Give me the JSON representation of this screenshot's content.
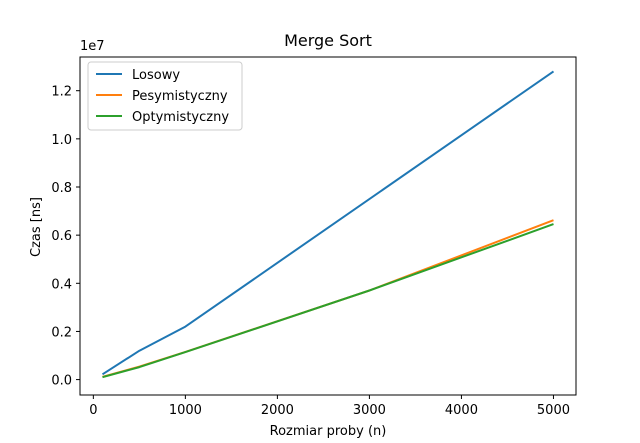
{
  "chart_data": {
    "type": "line",
    "title": "Merge Sort",
    "xlabel": "Rozmiar proby (n)",
    "ylabel": "Czas [ns]",
    "y_offset_label": "1e7",
    "xlim": [
      -145,
      5245
    ],
    "ylim": [
      -640000,
      13400000
    ],
    "x_ticks": [
      0,
      1000,
      2000,
      3000,
      4000,
      5000
    ],
    "x_tick_labels": [
      "0",
      "1000",
      "2000",
      "3000",
      "4000",
      "5000"
    ],
    "y_ticks": [
      0,
      2000000,
      4000000,
      6000000,
      8000000,
      10000000,
      12000000
    ],
    "y_tick_labels": [
      "0.0",
      "0.2",
      "0.4",
      "0.6",
      "0.8",
      "1.0",
      "1.2"
    ],
    "grid": false,
    "legend_position": "top-left",
    "x": [
      100,
      500,
      1000,
      5000
    ],
    "series": [
      {
        "name": "Losowy",
        "color": "#1f77b4",
        "values": [
          220000,
          1200000,
          2200000,
          12800000
        ]
      },
      {
        "name": "Pesymistyczny",
        "color": "#ff7f0e",
        "x": [
          100,
          500,
          1000,
          3000,
          5000
        ],
        "values": [
          110000,
          540000,
          1150000,
          3700000,
          6620000
        ]
      },
      {
        "name": "Optymistyczny",
        "color": "#2ca02c",
        "x": [
          100,
          500,
          1000,
          3000,
          5000
        ],
        "values": [
          100000,
          520000,
          1140000,
          3700000,
          6460000
        ]
      }
    ]
  }
}
